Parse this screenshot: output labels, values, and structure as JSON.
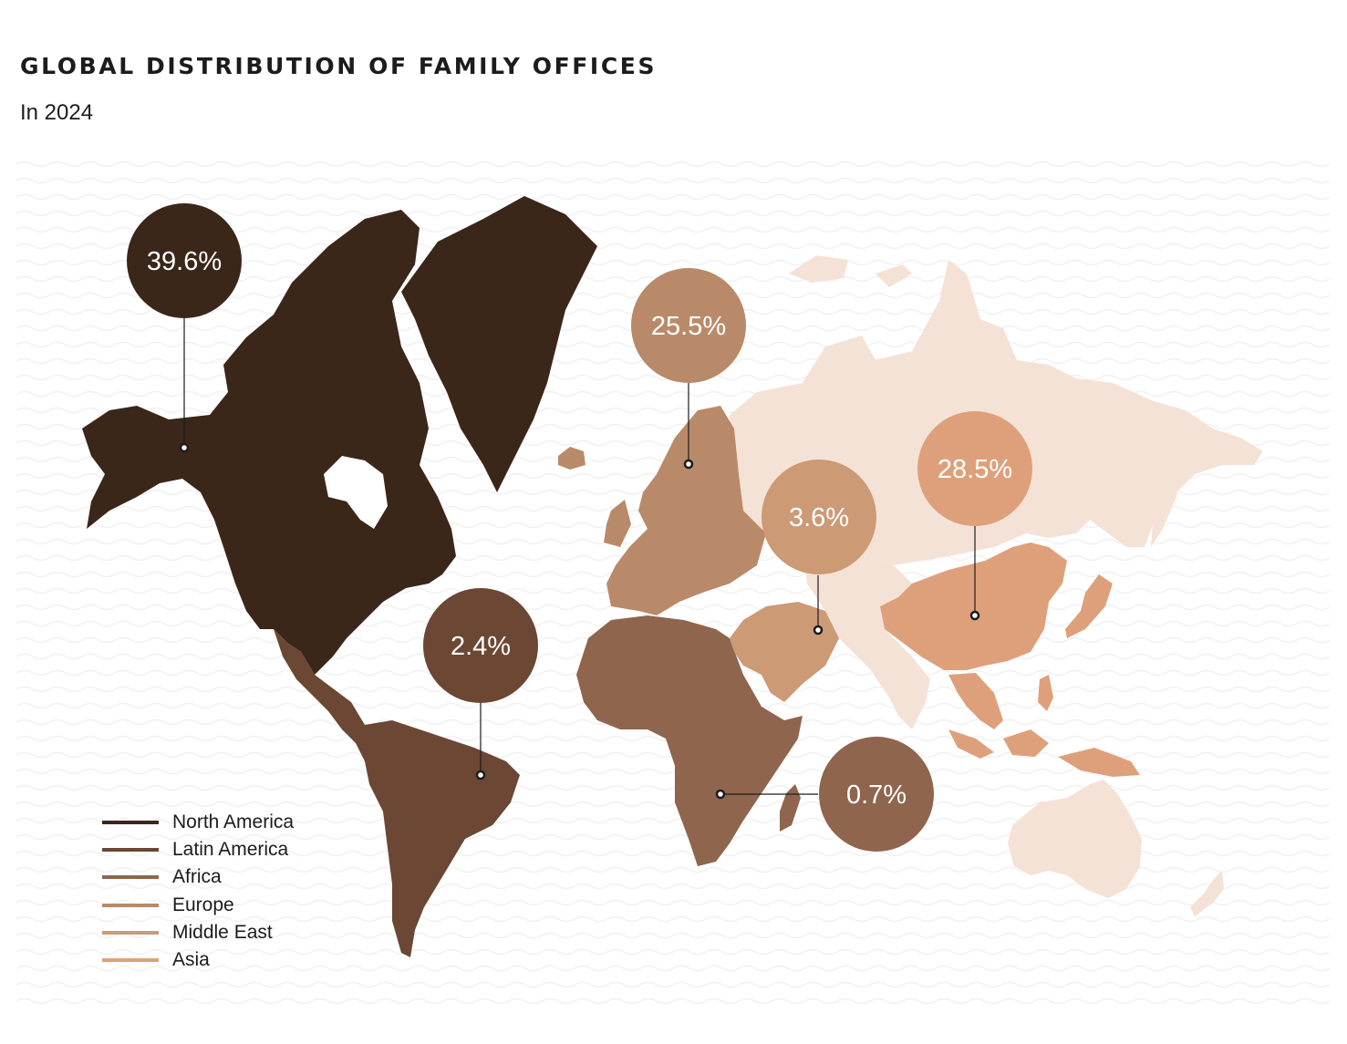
{
  "title": "GLOBAL DISTRIBUTION OF FAMILY OFFICES",
  "subtitle": "In 2024",
  "regions": [
    {
      "key": "north_america",
      "name": "North America",
      "value": "39.6%",
      "color": "#3b261a"
    },
    {
      "key": "latin_america",
      "name": "Latin America",
      "value": "2.4%",
      "color": "#6b4734"
    },
    {
      "key": "africa",
      "name": "Africa",
      "value": "0.7%",
      "color": "#8f654d"
    },
    {
      "key": "europe",
      "name": "Europe",
      "value": "25.5%",
      "color": "#b98a69"
    },
    {
      "key": "middle_east",
      "name": "Middle East",
      "value": "3.6%",
      "color": "#cd9a76"
    },
    {
      "key": "asia",
      "name": "Asia",
      "value": "28.5%",
      "color": "#dea07b"
    }
  ],
  "other_land_color": "#f5e2d6",
  "background_wave_color": "#f1f1f1"
}
